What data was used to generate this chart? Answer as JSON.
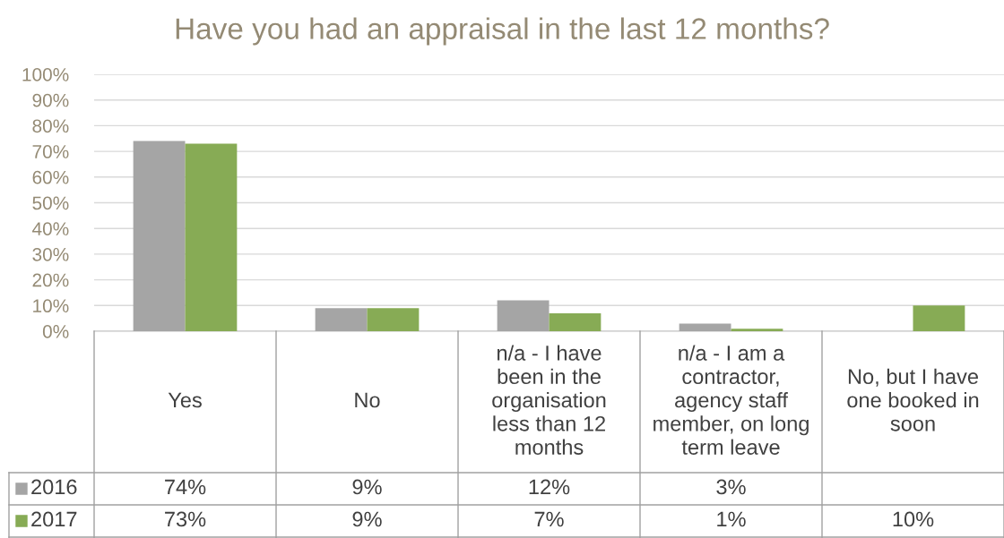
{
  "chart_data": {
    "type": "bar",
    "title": "Have you had an appraisal in the last 12 months?",
    "categories": [
      "Yes",
      "No",
      "n/a - I have been in the organisation less than 12 months",
      "n/a - I am a contractor, agency staff member, on long term leave",
      "No, but I have one booked in soon"
    ],
    "series": [
      {
        "name": "2016",
        "color": "#a5a5a5",
        "values": [
          74,
          9,
          12,
          3,
          null
        ],
        "value_labels": [
          "74%",
          "9%",
          "12%",
          "3%",
          null
        ]
      },
      {
        "name": "2017",
        "color": "#87ab55",
        "values": [
          73,
          9,
          7,
          1,
          10
        ],
        "value_labels": [
          "73%",
          "9%",
          "7%",
          "1%",
          "10%"
        ]
      }
    ],
    "ylim": [
      0,
      100
    ],
    "yticks": [
      {
        "value": 0,
        "label": "0%"
      },
      {
        "value": 10,
        "label": "10%"
      },
      {
        "value": 20,
        "label": "20%"
      },
      {
        "value": 30,
        "label": "30%"
      },
      {
        "value": 40,
        "label": "40%"
      },
      {
        "value": 50,
        "label": "50%"
      },
      {
        "value": 60,
        "label": "60%"
      },
      {
        "value": 70,
        "label": "70%"
      },
      {
        "value": 80,
        "label": "80%"
      },
      {
        "value": 90,
        "label": "90%"
      },
      {
        "value": 100,
        "label": "100%"
      }
    ],
    "grid": "y",
    "legend": "bottom"
  }
}
